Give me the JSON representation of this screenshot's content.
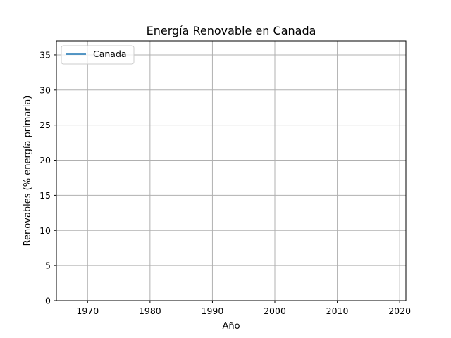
{
  "chart_data": {
    "type": "line",
    "title": "Energía Renovable en Canada",
    "xlabel": "Año",
    "ylabel": "Renovables (% energía primaria)",
    "xlim": [
      1965,
      2021
    ],
    "ylim": [
      0,
      37
    ],
    "xticks": [
      1970,
      1980,
      1990,
      2000,
      2010,
      2020
    ],
    "yticks": [
      0,
      5,
      10,
      15,
      20,
      25,
      30,
      35
    ],
    "grid": true,
    "legend_position": "top-left",
    "series": [
      {
        "name": "Canada",
        "color": "#1f77b4",
        "x": [],
        "y": []
      }
    ]
  }
}
